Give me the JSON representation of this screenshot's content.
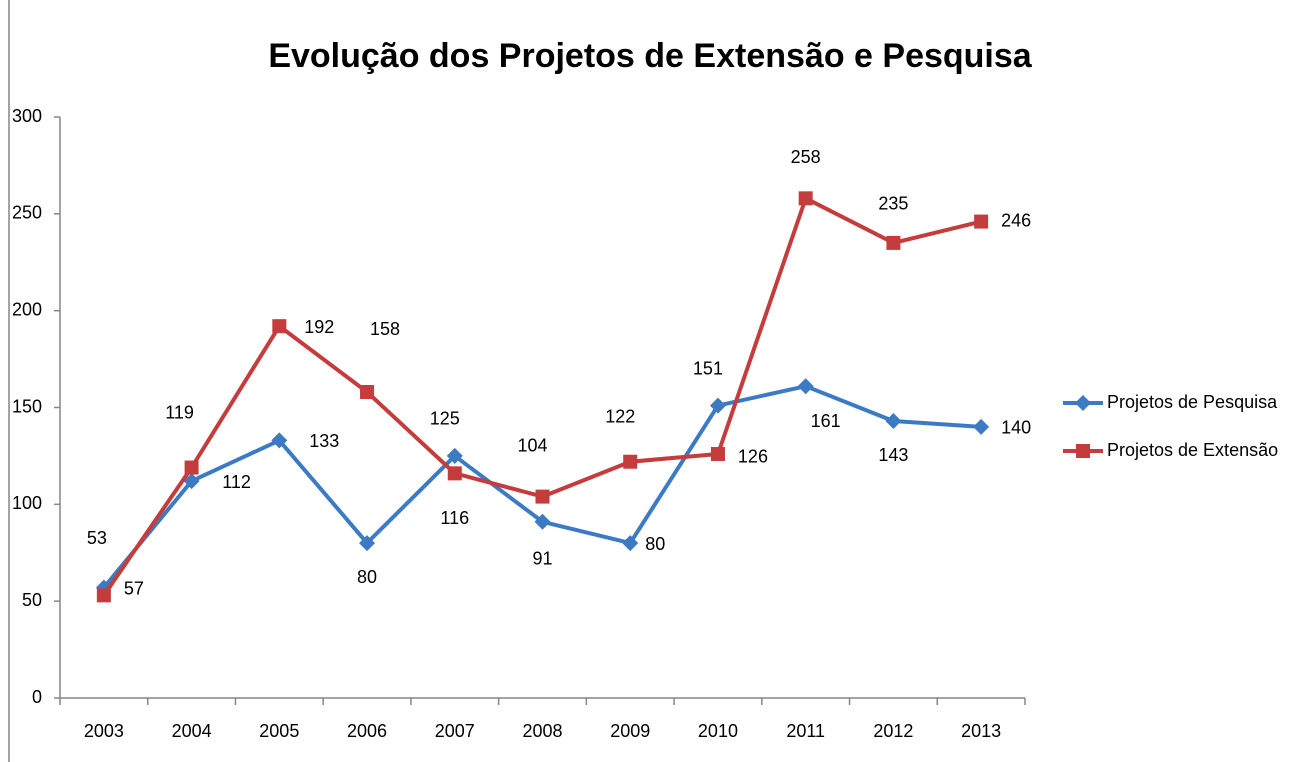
{
  "chart_data": {
    "type": "line",
    "title": "Evolução dos Projetos de Extensão e Pesquisa",
    "categories": [
      "2003",
      "2004",
      "2005",
      "2006",
      "2007",
      "2008",
      "2009",
      "2010",
      "2011",
      "2012",
      "2013"
    ],
    "series": [
      {
        "name": "Projetos de Pesquisa",
        "color": "#3c7bc4",
        "marker": "diamond",
        "values": [
          57,
          112,
          133,
          80,
          125,
          91,
          80,
          151,
          161,
          143,
          140
        ]
      },
      {
        "name": "Projetos de Extensão",
        "color": "#c43c3c",
        "marker": "square",
        "values": [
          53,
          119,
          192,
          158,
          116,
          104,
          122,
          126,
          258,
          235,
          246
        ]
      }
    ],
    "ylim": [
      0,
      300
    ],
    "yticks": [
      0,
      50,
      100,
      150,
      200,
      250,
      300
    ],
    "grid": false,
    "legend": "right"
  }
}
